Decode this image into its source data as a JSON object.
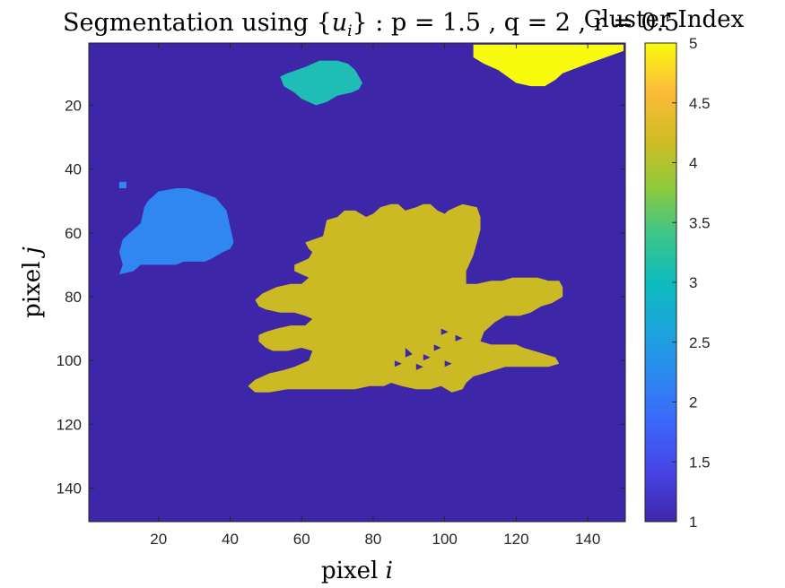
{
  "chart_data": {
    "type": "heatmap",
    "title": "Segmentation using {u_i} : p = 1.5 , q = 2 , r = 0.5",
    "title_parts": {
      "prefix": "Segmentation using {",
      "var": "u",
      "sub": "i",
      "suffix": "} : p = 1.5 , q = 2 , r = 0.5"
    },
    "xlabel": {
      "prefix": "pixel ",
      "var": "i"
    },
    "ylabel": {
      "prefix": "pixel ",
      "var": "j"
    },
    "colorbar_label": "Cluster Index",
    "colormap": "parula",
    "clim": [
      1,
      5
    ],
    "xlim": [
      0.5,
      150.5
    ],
    "ylim": [
      0.5,
      150.5
    ],
    "y_direction": "reverse",
    "xticks": [
      20,
      40,
      60,
      80,
      100,
      120,
      140
    ],
    "yticks": [
      20,
      40,
      60,
      80,
      100,
      120,
      140
    ],
    "colorbar_ticks": [
      "1",
      "1.5",
      "2",
      "2.5",
      "3",
      "3.5",
      "4",
      "4.5",
      "5"
    ],
    "background_value": 1,
    "regions": [
      {
        "value": 2,
        "color": "#3087F1",
        "outline": [
          [
            9,
            73
          ],
          [
            13,
            72
          ],
          [
            15,
            70
          ],
          [
            25,
            70
          ],
          [
            27,
            69
          ],
          [
            33,
            69
          ],
          [
            35,
            68
          ],
          [
            38,
            66
          ],
          [
            40,
            65
          ],
          [
            41,
            63
          ],
          [
            40,
            58
          ],
          [
            39,
            53
          ],
          [
            36,
            49
          ],
          [
            31,
            47
          ],
          [
            28,
            46
          ],
          [
            25,
            46
          ],
          [
            20,
            47
          ],
          [
            17,
            50
          ],
          [
            16,
            52
          ],
          [
            15,
            57
          ],
          [
            12,
            60
          ],
          [
            10,
            62
          ],
          [
            9,
            66
          ],
          [
            10,
            70
          ]
        ]
      },
      {
        "value": 2,
        "color": "#3087F1",
        "outline": [
          [
            9,
            44
          ],
          [
            11,
            44
          ],
          [
            11,
            46
          ],
          [
            9,
            46
          ]
        ]
      },
      {
        "value": 3,
        "color": "#1FBDB6",
        "outline": [
          [
            54,
            11
          ],
          [
            55,
            14
          ],
          [
            58,
            16
          ],
          [
            60,
            18
          ],
          [
            64,
            20
          ],
          [
            67,
            19
          ],
          [
            70,
            17
          ],
          [
            74,
            16
          ],
          [
            76,
            15
          ],
          [
            77,
            13
          ],
          [
            75,
            9
          ],
          [
            73,
            7
          ],
          [
            70,
            6
          ],
          [
            65,
            6
          ],
          [
            61,
            8
          ],
          [
            56,
            10
          ]
        ]
      },
      {
        "value": 5,
        "color": "#F9FB0E",
        "outline": [
          [
            108,
            1
          ],
          [
            108,
            5
          ],
          [
            111,
            7
          ],
          [
            115,
            9
          ],
          [
            120,
            13
          ],
          [
            124,
            14
          ],
          [
            128,
            14
          ],
          [
            131,
            12
          ],
          [
            133,
            10
          ],
          [
            140,
            7
          ],
          [
            145,
            5
          ],
          [
            150,
            3
          ],
          [
            150,
            1
          ]
        ]
      },
      {
        "value": 4,
        "color": "#CCBA25",
        "outline": [
          [
            66,
            61
          ],
          [
            67,
            56
          ],
          [
            70,
            55
          ],
          [
            72,
            53
          ],
          [
            75,
            53
          ],
          [
            78,
            55
          ],
          [
            80,
            54
          ],
          [
            82,
            52
          ],
          [
            85,
            51
          ],
          [
            87,
            51
          ],
          [
            89,
            53
          ],
          [
            92,
            52
          ],
          [
            94,
            51
          ],
          [
            96,
            51
          ],
          [
            98,
            53
          ],
          [
            100,
            54
          ],
          [
            101,
            53
          ],
          [
            103,
            52
          ],
          [
            105,
            51
          ],
          [
            109,
            52
          ],
          [
            110,
            55
          ],
          [
            110,
            59
          ],
          [
            109,
            63
          ],
          [
            108,
            67
          ],
          [
            106,
            72
          ],
          [
            106,
            76
          ],
          [
            109,
            76
          ],
          [
            113,
            75
          ],
          [
            116,
            75
          ],
          [
            119,
            74
          ],
          [
            123,
            74
          ],
          [
            126,
            74
          ],
          [
            129,
            75
          ],
          [
            132,
            75
          ],
          [
            133,
            77
          ],
          [
            133,
            80
          ],
          [
            130,
            82
          ],
          [
            127,
            83
          ],
          [
            124,
            85
          ],
          [
            121,
            86
          ],
          [
            117,
            86
          ],
          [
            114,
            88
          ],
          [
            111,
            91
          ],
          [
            110,
            94
          ],
          [
            113,
            95
          ],
          [
            117,
            95
          ],
          [
            120,
            95
          ],
          [
            122,
            96
          ],
          [
            125,
            97
          ],
          [
            128,
            98
          ],
          [
            131,
            99
          ],
          [
            132,
            101
          ],
          [
            129,
            102
          ],
          [
            125,
            102
          ],
          [
            121,
            102
          ],
          [
            117,
            102
          ],
          [
            114,
            103
          ],
          [
            111,
            104
          ],
          [
            108,
            105
          ],
          [
            106,
            107
          ],
          [
            105,
            109
          ],
          [
            102,
            110
          ],
          [
            99,
            108
          ],
          [
            96,
            109
          ],
          [
            92,
            109
          ],
          [
            88,
            108
          ],
          [
            85,
            107
          ],
          [
            83,
            108
          ],
          [
            79,
            108
          ],
          [
            75,
            109
          ],
          [
            71,
            109
          ],
          [
            68,
            109
          ],
          [
            64,
            109
          ],
          [
            60,
            109
          ],
          [
            56,
            109
          ],
          [
            51,
            110
          ],
          [
            47,
            110
          ],
          [
            45,
            108
          ],
          [
            47,
            106
          ],
          [
            51,
            104
          ],
          [
            55,
            103
          ],
          [
            58,
            102
          ],
          [
            62,
            100
          ],
          [
            63,
            97
          ],
          [
            60,
            96
          ],
          [
            56,
            97
          ],
          [
            52,
            97
          ],
          [
            50,
            96
          ],
          [
            48,
            94
          ],
          [
            48,
            92
          ],
          [
            50,
            91
          ],
          [
            53,
            90
          ],
          [
            57,
            89
          ],
          [
            61,
            89
          ],
          [
            63,
            87
          ],
          [
            61,
            86
          ],
          [
            58,
            85
          ],
          [
            54,
            85
          ],
          [
            50,
            84
          ],
          [
            48,
            83
          ],
          [
            47,
            81
          ],
          [
            49,
            79
          ],
          [
            51,
            78
          ],
          [
            53,
            77
          ],
          [
            57,
            76
          ],
          [
            60,
            76
          ],
          [
            62,
            74
          ],
          [
            60,
            73
          ],
          [
            58,
            72
          ],
          [
            58,
            70
          ],
          [
            60,
            69
          ],
          [
            62,
            68
          ],
          [
            63,
            66
          ],
          [
            62,
            65
          ],
          [
            61,
            63
          ]
        ]
      }
    ],
    "holes": [
      [
        [
          89,
          96
        ],
        [
          91,
          98
        ],
        [
          89,
          99
        ]
      ],
      [
        [
          94,
          98
        ],
        [
          96,
          99
        ],
        [
          94,
          100
        ]
      ],
      [
        [
          97,
          95
        ],
        [
          99,
          96
        ],
        [
          97,
          97
        ]
      ],
      [
        [
          100,
          100
        ],
        [
          102,
          101
        ],
        [
          100,
          102
        ]
      ],
      [
        [
          103,
          92
        ],
        [
          105,
          93
        ],
        [
          103,
          94
        ]
      ],
      [
        [
          86,
          100
        ],
        [
          88,
          101
        ],
        [
          86,
          102
        ]
      ],
      [
        [
          99,
          90
        ],
        [
          101,
          91
        ],
        [
          99,
          92
        ]
      ],
      [
        [
          92,
          101
        ],
        [
          94,
          102
        ],
        [
          92,
          103
        ]
      ]
    ]
  }
}
